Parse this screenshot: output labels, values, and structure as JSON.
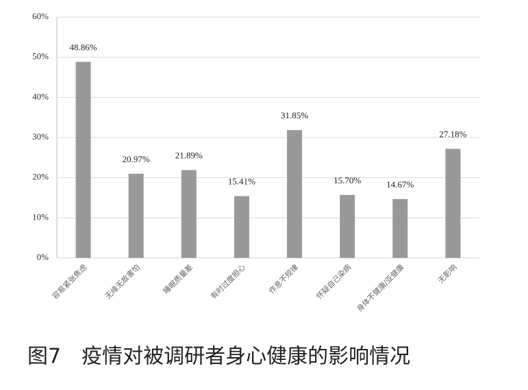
{
  "chart_data": {
    "type": "bar",
    "title": "图7　疫情对被调研者身心健康的影响情况",
    "categories": [
      "容易紧张焦虑",
      "无缘无故害怕",
      "睡眠质量差",
      "有时过度担心",
      "作息不规律",
      "怀疑自己染病",
      "身体不健康/亚健康",
      "无影响"
    ],
    "values": [
      48.86,
      20.97,
      21.89,
      15.41,
      31.85,
      15.7,
      14.67,
      27.18
    ],
    "value_labels": [
      "48.86%",
      "20.97%",
      "21.89%",
      "15.41%",
      "31.85%",
      "15.70%",
      "14.67%",
      "27.18%"
    ],
    "color": "#999999",
    "ylim": [
      0,
      60
    ],
    "yticks": [
      {
        "value": 0,
        "label": "0%"
      },
      {
        "value": 10,
        "label": "10%"
      },
      {
        "value": 20,
        "label": "20%"
      },
      {
        "value": 30,
        "label": "30%"
      },
      {
        "value": 40,
        "label": "40%"
      },
      {
        "value": 50,
        "label": "50%"
      },
      {
        "value": 60,
        "label": "60%"
      }
    ],
    "grid": true
  }
}
